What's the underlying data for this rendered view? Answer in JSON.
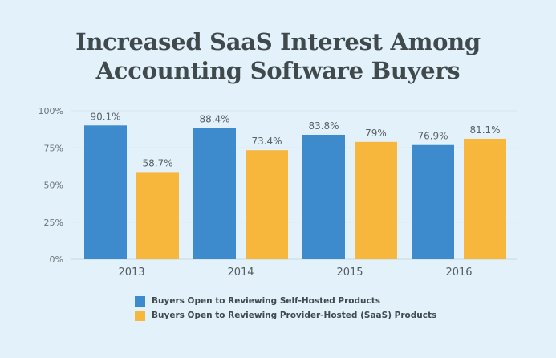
{
  "chart_data": {
    "type": "bar",
    "title_lines": [
      "Increased SaaS Interest Among",
      "Accounting Software Buyers"
    ],
    "categories": [
      "2013",
      "2014",
      "2015",
      "2016"
    ],
    "series": [
      {
        "name": "Buyers Open to Reviewing Self-Hosted Products",
        "values": [
          90.1,
          88.4,
          83.8,
          76.9
        ],
        "labels": [
          "90.1%",
          "88.4%",
          "83.8%",
          "76.9%"
        ],
        "color": "#3d8bcd"
      },
      {
        "name": "Buyers Open to Reviewing Provider-Hosted (SaaS) Products",
        "values": [
          58.7,
          73.4,
          79,
          81.1
        ],
        "labels": [
          "58.7%",
          "73.4%",
          "79%",
          "81.1%"
        ],
        "color": "#f6b73c"
      }
    ],
    "ylim": [
      0,
      100
    ],
    "yticks": [
      0,
      25,
      50,
      75,
      100
    ],
    "ytick_labels": [
      "0%",
      "25%",
      "50%",
      "75%",
      "100%"
    ],
    "grid": true,
    "legend_position": "bottom"
  }
}
